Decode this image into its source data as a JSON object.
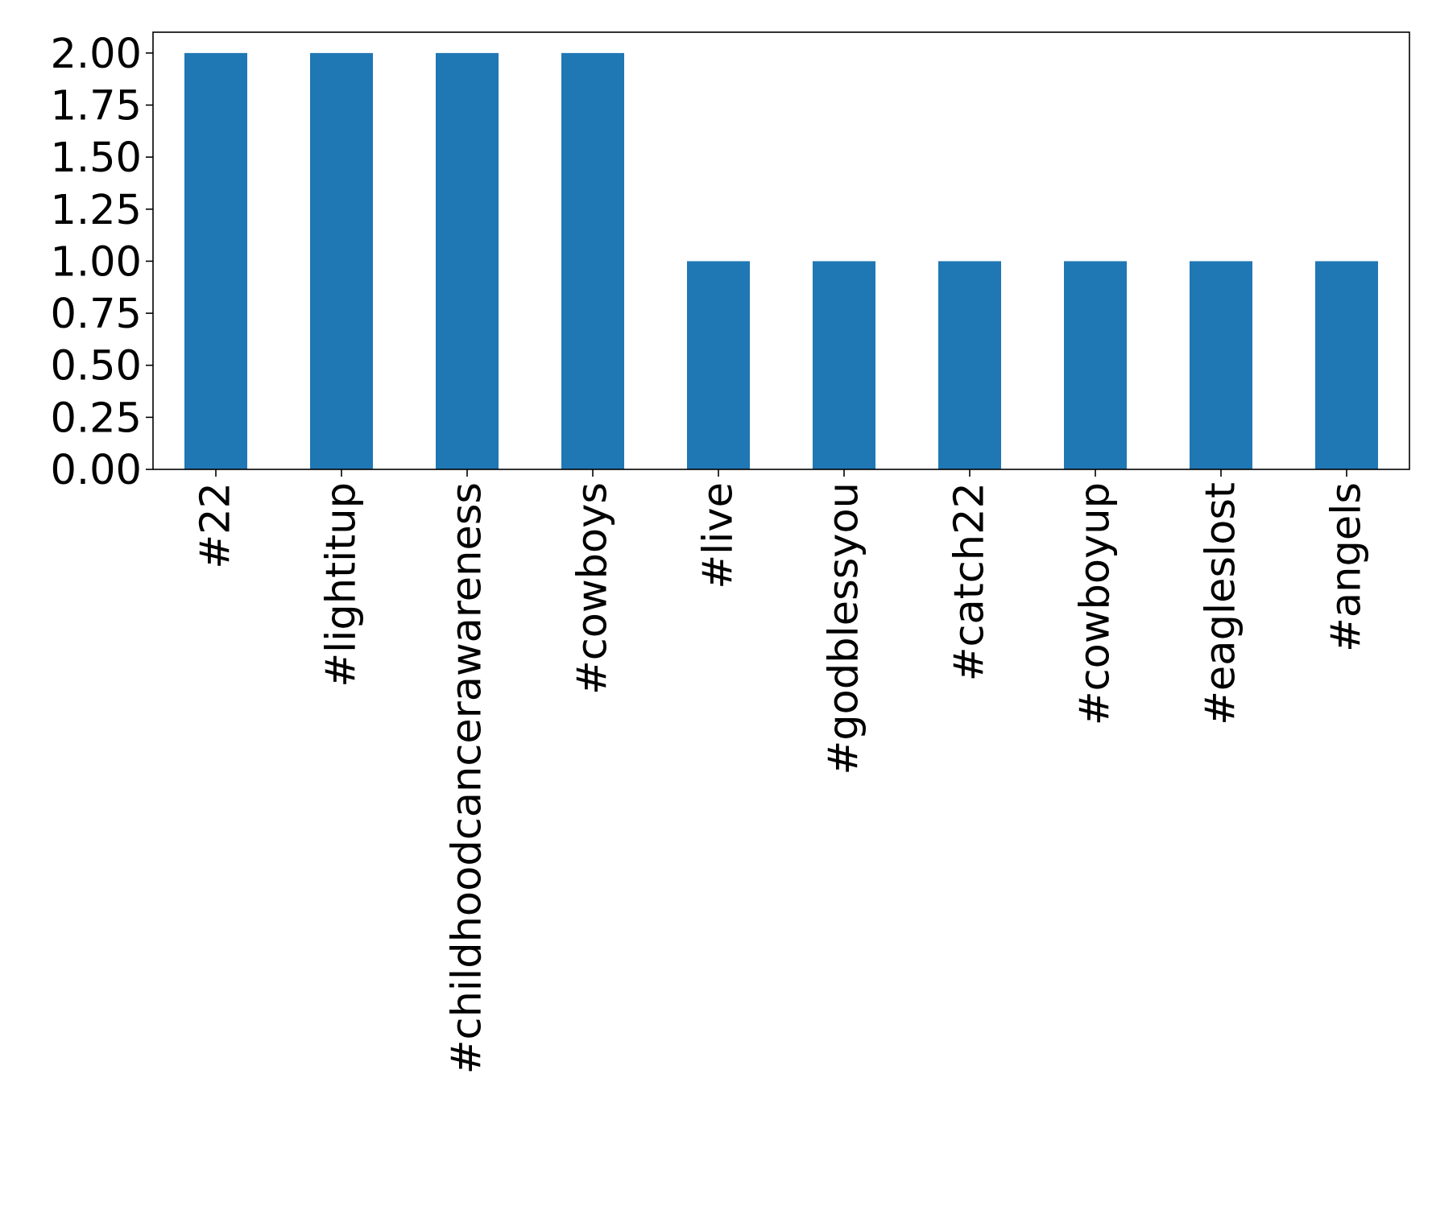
{
  "chart_data": {
    "type": "bar",
    "categories": [
      "#22",
      "#lightitup",
      "#childhoodcancerawareness",
      "#cowboys",
      "#live",
      "#godblessyou",
      "#catch22",
      "#cowboyup",
      "#eagleslost",
      "#angels"
    ],
    "values": [
      2,
      2,
      2,
      2,
      1,
      1,
      1,
      1,
      1,
      1
    ],
    "title": "",
    "xlabel": "",
    "ylabel": "",
    "ylim": [
      0,
      2.1
    ],
    "yticks": [
      "0.00",
      "0.25",
      "0.50",
      "0.75",
      "1.00",
      "1.25",
      "1.50",
      "1.75",
      "2.00"
    ],
    "grid": false,
    "bar_color": "#1f77b4"
  }
}
